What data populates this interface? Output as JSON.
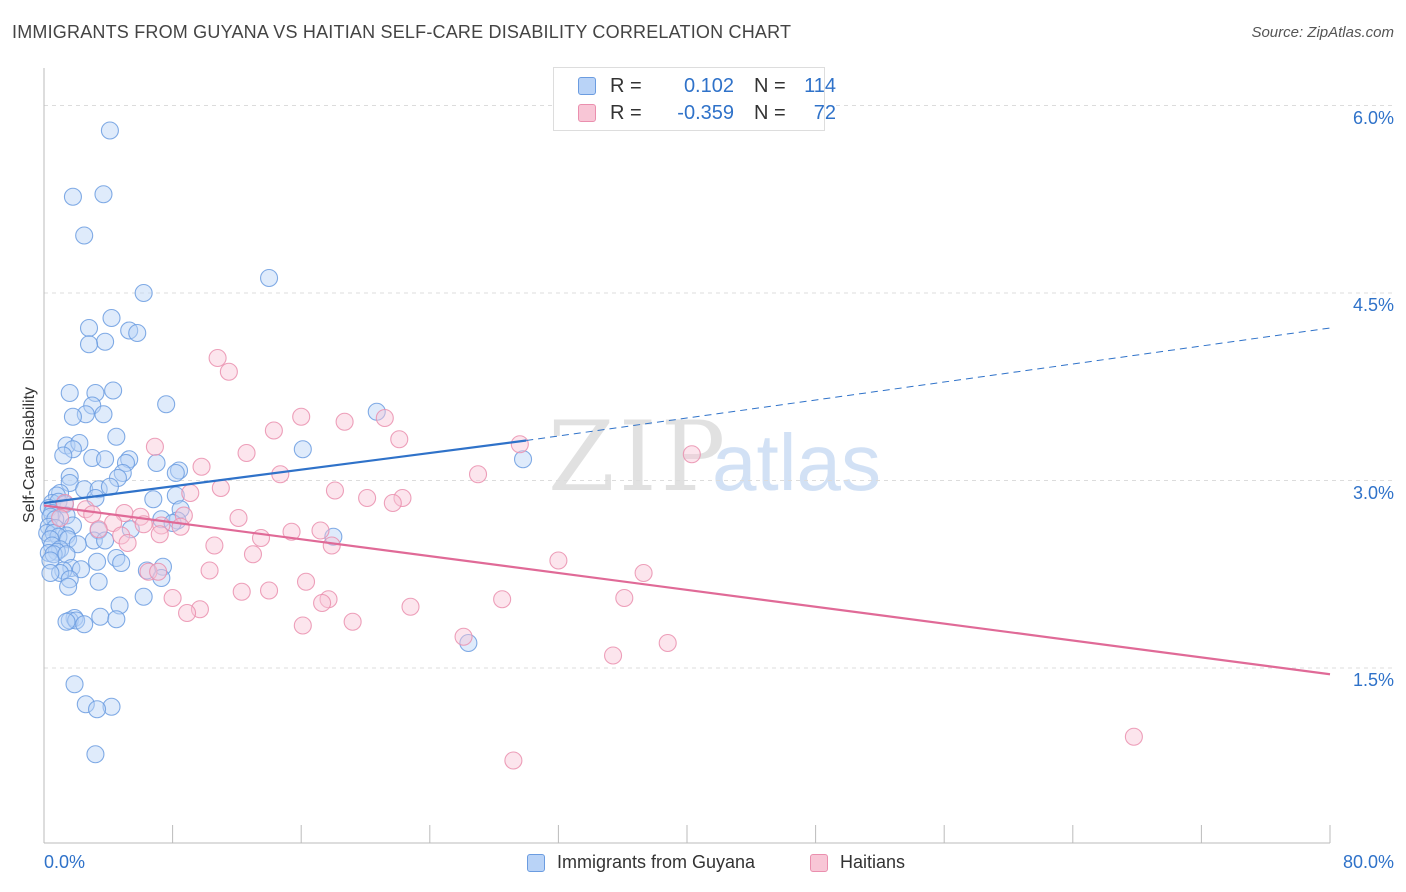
{
  "title": "IMMIGRANTS FROM GUYANA VS HAITIAN SELF-CARE DISABILITY CORRELATION CHART",
  "source": "Source: ZipAtlas.com",
  "watermark": {
    "zip": "ZIP",
    "atlas": "atlas"
  },
  "legend_top": {
    "rows": [
      {
        "r_label": "R =",
        "r_value": "0.102",
        "n_label": "N =",
        "n_value": "114"
      },
      {
        "r_label": "R =",
        "r_value": "-0.359",
        "n_label": "N =",
        "n_value": "72"
      }
    ]
  },
  "chart_data": {
    "type": "scatter",
    "title": "IMMIGRANTS FROM GUYANA VS HAITIAN SELF-CARE DISABILITY CORRELATION CHART",
    "xlabel": "",
    "ylabel": "Self-Care Disability",
    "xlim": [
      0,
      80
    ],
    "ylim": [
      0.1,
      6.3
    ],
    "x_tick_labels": [
      "0.0%",
      "80.0%"
    ],
    "y_ticks": [
      {
        "value": 1.5,
        "label": "1.5%"
      },
      {
        "value": 3.0,
        "label": "3.0%"
      },
      {
        "value": 4.5,
        "label": "4.5%"
      },
      {
        "value": 6.0,
        "label": "6.0%"
      }
    ],
    "grid": "horizontal dashed",
    "legend_placement": "bottom",
    "colors": {
      "guyana": "#6b9ce0",
      "guyana_fill": "#b9d3f7",
      "haitians": "#ea8fae",
      "haitians_fill": "#f8c6d6",
      "guyana_line": "#2f72c9",
      "haitians_line": "#e06a97"
    },
    "series": [
      {
        "name": "Immigrants from Guyana",
        "R": 0.102,
        "N": 114,
        "trend": {
          "x0": 0,
          "y0": 2.82,
          "x1": 30,
          "y1": 3.32,
          "dash_to_x": 80,
          "dash_to_y": 4.22
        },
        "points": [
          [
            4.1,
            5.8
          ],
          [
            1.8,
            5.27
          ],
          [
            3.7,
            5.29
          ],
          [
            2.5,
            4.96
          ],
          [
            6.2,
            4.5
          ],
          [
            14.0,
            4.62
          ],
          [
            4.2,
            4.3
          ],
          [
            2.8,
            4.22
          ],
          [
            5.3,
            4.2
          ],
          [
            5.8,
            4.18
          ],
          [
            3.8,
            4.11
          ],
          [
            2.8,
            4.09
          ],
          [
            4.3,
            3.72
          ],
          [
            1.6,
            3.7
          ],
          [
            3.2,
            3.7
          ],
          [
            7.6,
            3.61
          ],
          [
            3.0,
            3.6
          ],
          [
            20.7,
            3.55
          ],
          [
            2.6,
            3.53
          ],
          [
            3.7,
            3.53
          ],
          [
            1.8,
            3.51
          ],
          [
            1.4,
            3.28
          ],
          [
            2.2,
            3.3
          ],
          [
            4.5,
            3.35
          ],
          [
            1.8,
            3.25
          ],
          [
            1.2,
            3.2
          ],
          [
            16.1,
            3.25
          ],
          [
            3.0,
            3.18
          ],
          [
            3.8,
            3.17
          ],
          [
            5.3,
            3.17
          ],
          [
            5.1,
            3.14
          ],
          [
            7.0,
            3.14
          ],
          [
            29.8,
            3.17
          ],
          [
            8.4,
            3.08
          ],
          [
            8.2,
            3.06
          ],
          [
            4.9,
            3.06
          ],
          [
            1.6,
            3.03
          ],
          [
            4.6,
            3.02
          ],
          [
            1.6,
            2.98
          ],
          [
            2.5,
            2.93
          ],
          [
            3.4,
            2.93
          ],
          [
            4.1,
            2.95
          ],
          [
            1.0,
            2.9
          ],
          [
            0.8,
            2.88
          ],
          [
            8.2,
            2.88
          ],
          [
            3.2,
            2.86
          ],
          [
            6.8,
            2.85
          ],
          [
            0.5,
            2.82
          ],
          [
            0.9,
            2.83
          ],
          [
            1.3,
            2.81
          ],
          [
            0.3,
            2.78
          ],
          [
            8.5,
            2.77
          ],
          [
            0.5,
            2.74
          ],
          [
            1.4,
            2.72
          ],
          [
            0.4,
            2.71
          ],
          [
            0.7,
            2.69
          ],
          [
            7.3,
            2.69
          ],
          [
            8.3,
            2.68
          ],
          [
            8.0,
            2.66
          ],
          [
            0.3,
            2.63
          ],
          [
            1.8,
            2.64
          ],
          [
            0.7,
            2.62
          ],
          [
            5.4,
            2.61
          ],
          [
            3.4,
            2.6
          ],
          [
            0.2,
            2.58
          ],
          [
            0.6,
            2.58
          ],
          [
            1.4,
            2.56
          ],
          [
            0.9,
            2.55
          ],
          [
            0.4,
            2.53
          ],
          [
            1.5,
            2.53
          ],
          [
            18.0,
            2.55
          ],
          [
            3.1,
            2.52
          ],
          [
            3.8,
            2.52
          ],
          [
            2.1,
            2.49
          ],
          [
            0.5,
            2.48
          ],
          [
            1.0,
            2.45
          ],
          [
            0.8,
            2.43
          ],
          [
            0.3,
            2.42
          ],
          [
            0.6,
            2.41
          ],
          [
            1.4,
            2.41
          ],
          [
            4.5,
            2.38
          ],
          [
            0.4,
            2.36
          ],
          [
            3.3,
            2.35
          ],
          [
            4.8,
            2.34
          ],
          [
            7.4,
            2.31
          ],
          [
            1.7,
            2.3
          ],
          [
            2.3,
            2.29
          ],
          [
            6.4,
            2.28
          ],
          [
            1.2,
            2.28
          ],
          [
            1.0,
            2.26
          ],
          [
            0.4,
            2.26
          ],
          [
            7.3,
            2.22
          ],
          [
            1.6,
            2.21
          ],
          [
            3.4,
            2.19
          ],
          [
            1.5,
            2.15
          ],
          [
            6.2,
            2.07
          ],
          [
            4.7,
            2.0
          ],
          [
            3.5,
            1.91
          ],
          [
            1.9,
            1.9
          ],
          [
            1.6,
            1.88
          ],
          [
            2.0,
            1.88
          ],
          [
            1.4,
            1.87
          ],
          [
            4.5,
            1.89
          ],
          [
            2.5,
            1.85
          ],
          [
            26.4,
            1.7
          ],
          [
            1.9,
            1.37
          ],
          [
            2.6,
            1.21
          ],
          [
            4.2,
            1.19
          ],
          [
            3.3,
            1.17
          ],
          [
            3.2,
            0.81
          ]
        ]
      },
      {
        "name": "Haitians",
        "R": -0.359,
        "N": 72,
        "trend": {
          "x0": 0,
          "y0": 2.8,
          "x1": 80,
          "y1": 1.45
        },
        "points": [
          [
            10.8,
            3.98
          ],
          [
            11.5,
            3.87
          ],
          [
            16.0,
            3.51
          ],
          [
            21.2,
            3.5
          ],
          [
            18.7,
            3.47
          ],
          [
            14.3,
            3.4
          ],
          [
            22.1,
            3.33
          ],
          [
            29.6,
            3.29
          ],
          [
            6.9,
            3.27
          ],
          [
            12.6,
            3.22
          ],
          [
            40.3,
            3.21
          ],
          [
            9.8,
            3.11
          ],
          [
            14.7,
            3.05
          ],
          [
            27.0,
            3.05
          ],
          [
            18.1,
            2.92
          ],
          [
            11.0,
            2.94
          ],
          [
            20.1,
            2.86
          ],
          [
            22.3,
            2.86
          ],
          [
            21.7,
            2.82
          ],
          [
            1.3,
            2.82
          ],
          [
            9.1,
            2.9
          ],
          [
            2.6,
            2.77
          ],
          [
            5.0,
            2.74
          ],
          [
            3.0,
            2.73
          ],
          [
            8.7,
            2.72
          ],
          [
            1.0,
            2.7
          ],
          [
            6.0,
            2.71
          ],
          [
            12.1,
            2.7
          ],
          [
            4.3,
            2.66
          ],
          [
            6.2,
            2.65
          ],
          [
            7.3,
            2.64
          ],
          [
            8.5,
            2.63
          ],
          [
            3.4,
            2.61
          ],
          [
            15.4,
            2.59
          ],
          [
            17.2,
            2.6
          ],
          [
            7.2,
            2.57
          ],
          [
            4.8,
            2.56
          ],
          [
            13.5,
            2.54
          ],
          [
            5.2,
            2.5
          ],
          [
            17.9,
            2.48
          ],
          [
            10.6,
            2.48
          ],
          [
            13.0,
            2.41
          ],
          [
            32.0,
            2.36
          ],
          [
            6.5,
            2.27
          ],
          [
            7.1,
            2.27
          ],
          [
            10.3,
            2.28
          ],
          [
            37.3,
            2.26
          ],
          [
            16.3,
            2.19
          ],
          [
            14.0,
            2.12
          ],
          [
            12.3,
            2.11
          ],
          [
            8.0,
            2.06
          ],
          [
            28.5,
            2.05
          ],
          [
            36.1,
            2.06
          ],
          [
            17.7,
            2.05
          ],
          [
            17.3,
            2.02
          ],
          [
            22.8,
            1.99
          ],
          [
            9.7,
            1.97
          ],
          [
            8.9,
            1.94
          ],
          [
            19.2,
            1.87
          ],
          [
            16.1,
            1.84
          ],
          [
            26.1,
            1.75
          ],
          [
            38.8,
            1.7
          ],
          [
            35.4,
            1.6
          ],
          [
            67.8,
            0.95
          ],
          [
            29.2,
            0.76
          ]
        ]
      }
    ]
  }
}
